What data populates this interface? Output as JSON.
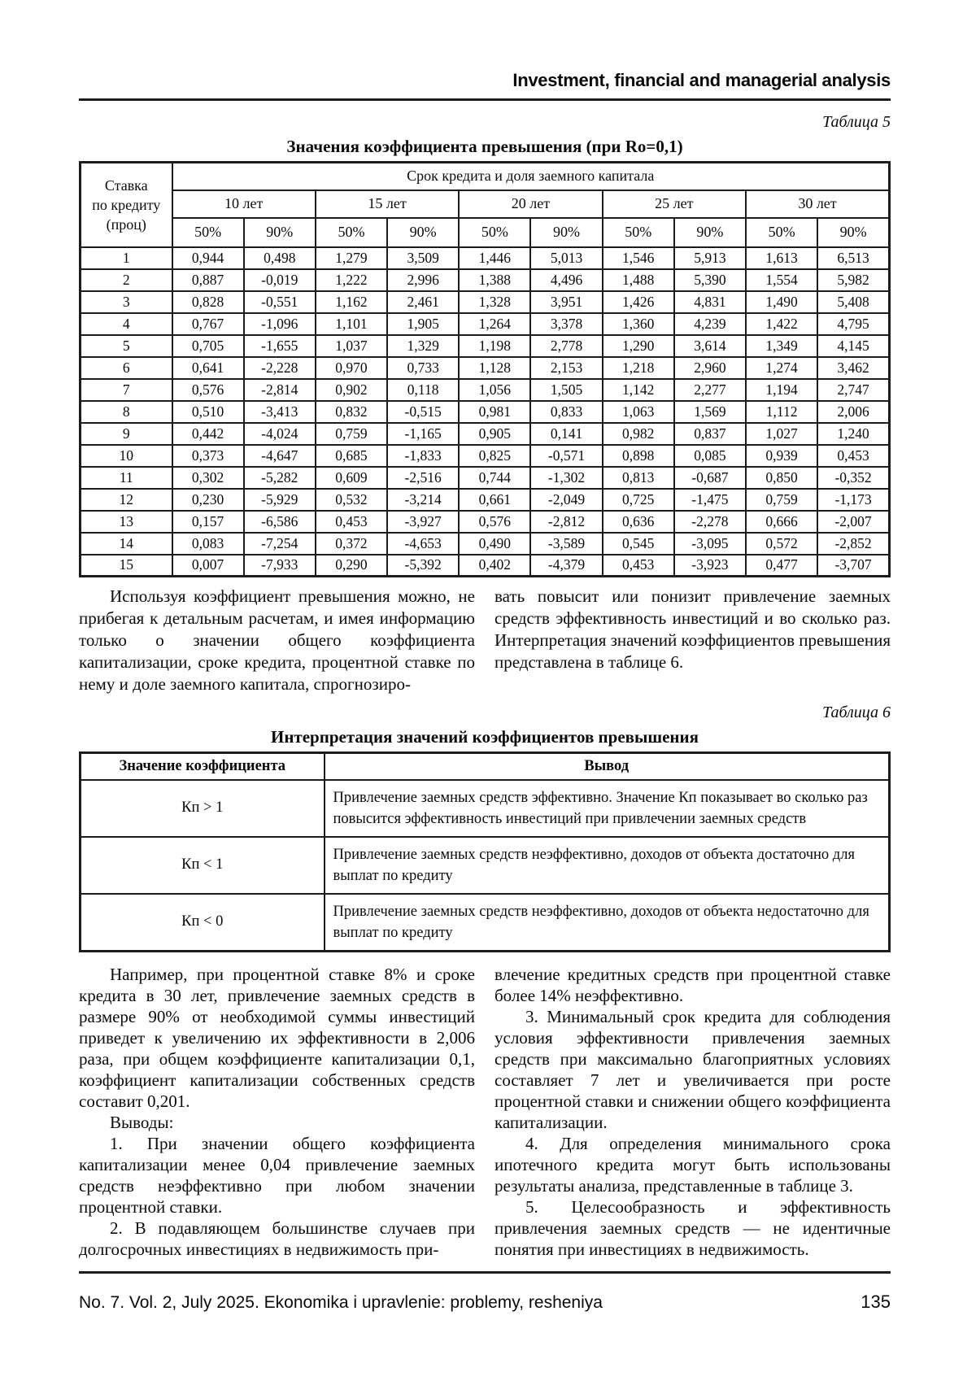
{
  "page": {
    "running_head": "Investment, financial and managerial analysis",
    "footer": {
      "left": "No. 7. Vol. 2, July 2025. Ekonomika i upravlenie: problemy, resheniya",
      "page_number": "135"
    }
  },
  "table5": {
    "caption": "Таблица 5",
    "title": "Значения коэффициента превышения (при Ro=0,1)",
    "header": {
      "rate_col": "Ставка\nпо кредиту\n(проц)",
      "span_title": "Срок кредита и доля заемного капитала",
      "terms": [
        "10 лет",
        "15 лет",
        "20 лет",
        "25 лет",
        "30 лет"
      ],
      "shares": [
        "50%",
        "90%"
      ]
    },
    "rows": [
      {
        "rate": "1",
        "values": [
          "0,944",
          "0,498",
          "1,279",
          "3,509",
          "1,446",
          "5,013",
          "1,546",
          "5,913",
          "1,613",
          "6,513"
        ]
      },
      {
        "rate": "2",
        "values": [
          "0,887",
          "-0,019",
          "1,222",
          "2,996",
          "1,388",
          "4,496",
          "1,488",
          "5,390",
          "1,554",
          "5,982"
        ]
      },
      {
        "rate": "3",
        "values": [
          "0,828",
          "-0,551",
          "1,162",
          "2,461",
          "1,328",
          "3,951",
          "1,426",
          "4,831",
          "1,490",
          "5,408"
        ]
      },
      {
        "rate": "4",
        "values": [
          "0,767",
          "-1,096",
          "1,101",
          "1,905",
          "1,264",
          "3,378",
          "1,360",
          "4,239",
          "1,422",
          "4,795"
        ]
      },
      {
        "rate": "5",
        "values": [
          "0,705",
          "-1,655",
          "1,037",
          "1,329",
          "1,198",
          "2,778",
          "1,290",
          "3,614",
          "1,349",
          "4,145"
        ]
      },
      {
        "rate": "6",
        "values": [
          "0,641",
          "-2,228",
          "0,970",
          "0,733",
          "1,128",
          "2,153",
          "1,218",
          "2,960",
          "1,274",
          "3,462"
        ]
      },
      {
        "rate": "7",
        "values": [
          "0,576",
          "-2,814",
          "0,902",
          "0,118",
          "1,056",
          "1,505",
          "1,142",
          "2,277",
          "1,194",
          "2,747"
        ]
      },
      {
        "rate": "8",
        "values": [
          "0,510",
          "-3,413",
          "0,832",
          "-0,515",
          "0,981",
          "0,833",
          "1,063",
          "1,569",
          "1,112",
          "2,006"
        ]
      },
      {
        "rate": "9",
        "values": [
          "0,442",
          "-4,024",
          "0,759",
          "-1,165",
          "0,905",
          "0,141",
          "0,982",
          "0,837",
          "1,027",
          "1,240"
        ]
      },
      {
        "rate": "10",
        "values": [
          "0,373",
          "-4,647",
          "0,685",
          "-1,833",
          "0,825",
          "-0,571",
          "0,898",
          "0,085",
          "0,939",
          "0,453"
        ]
      },
      {
        "rate": "11",
        "values": [
          "0,302",
          "-5,282",
          "0,609",
          "-2,516",
          "0,744",
          "-1,302",
          "0,813",
          "-0,687",
          "0,850",
          "-0,352"
        ]
      },
      {
        "rate": "12",
        "values": [
          "0,230",
          "-5,929",
          "0,532",
          "-3,214",
          "0,661",
          "-2,049",
          "0,725",
          "-1,475",
          "0,759",
          "-1,173"
        ]
      },
      {
        "rate": "13",
        "values": [
          "0,157",
          "-6,586",
          "0,453",
          "-3,927",
          "0,576",
          "-2,812",
          "0,636",
          "-2,278",
          "0,666",
          "-2,007"
        ]
      },
      {
        "rate": "14",
        "values": [
          "0,083",
          "-7,254",
          "0,372",
          "-4,653",
          "0,490",
          "-3,589",
          "0,545",
          "-3,095",
          "0,572",
          "-2,852"
        ]
      },
      {
        "rate": "15",
        "values": [
          "0,007",
          "-7,933",
          "0,290",
          "-5,392",
          "0,402",
          "-4,379",
          "0,453",
          "-3,923",
          "0,477",
          "-3,707"
        ]
      }
    ]
  },
  "between_text": {
    "left": [
      {
        "indent": true,
        "text": "Используя коэффициент превышения можно, не прибегая к детальным расчетам, и имея информацию только о значении общего коэффициента капитализации, сроке кредита, процентной ставке по нему и доле заемного капитала, спрогнозиро-"
      }
    ],
    "right": [
      {
        "indent": false,
        "text": "вать повысит или понизит привлечение заемных средств эффективность инвестиций и во сколько раз. Интерпретация значений коэффициентов превышения представлена в таблице 6."
      }
    ]
  },
  "table6": {
    "caption": "Таблица 6",
    "title": "Интерпретация значений коэффициентов превышения",
    "col_headers": [
      "Значение коэффициента",
      "Вывод"
    ],
    "rows": [
      {
        "value": "Кп > 1",
        "conclusion": "Привлечение заемных средств эффективно. Значение Кп показывает во сколько раз повысится эффективность инвестиций при привлечении заемных средств"
      },
      {
        "value": "Кп < 1",
        "conclusion": "Привлечение заемных средств неэффективно, доходов от объекта достаточно для выплат по кредиту"
      },
      {
        "value": "Кп < 0",
        "conclusion": "Привлечение заемных средств неэффективно, доходов от объекта недостаточно для выплат по кредиту"
      }
    ]
  },
  "bottom_text": {
    "left": [
      {
        "indent": true,
        "text": "Например, при процентной ставке 8% и сроке кредита в 30 лет, привлечение заемных средств в размере 90% от необходимой суммы инвестиций приведет к увеличению их эффективности в 2,006 раза, при общем коэффициенте капитализации 0,1, коэффициент капитализации собственных средств составит 0,201."
      },
      {
        "indent": true,
        "text": "Выводы:"
      },
      {
        "indent": true,
        "text": "1. При значении общего коэффициента капитализации менее 0,04 привлечение заемных средств неэффективно при любом значении процентной ставки."
      },
      {
        "indent": true,
        "text": "2. В подавляющем большинстве случаев при долгосрочных инвестициях в недвижимость при-"
      }
    ],
    "right": [
      {
        "indent": false,
        "text": "влечение кредитных средств при процентной ставке более 14% неэффективно."
      },
      {
        "indent": true,
        "text": "3. Минимальный срок кредита для соблюдения условия эффективности привлечения заемных средств при максимально благоприятных условиях составляет 7 лет и увеличивается при росте процентной ставки и снижении общего коэффициента капитализации."
      },
      {
        "indent": true,
        "text": "4. Для определения минимального срока ипотечного кредита могут быть использованы результаты анализа, представленные в таблице 3."
      },
      {
        "indent": true,
        "text": "5. Целесообразность и эффективность привлечения заемных средств — не идентичные понятия при инвестициях в недвижимость."
      }
    ]
  }
}
